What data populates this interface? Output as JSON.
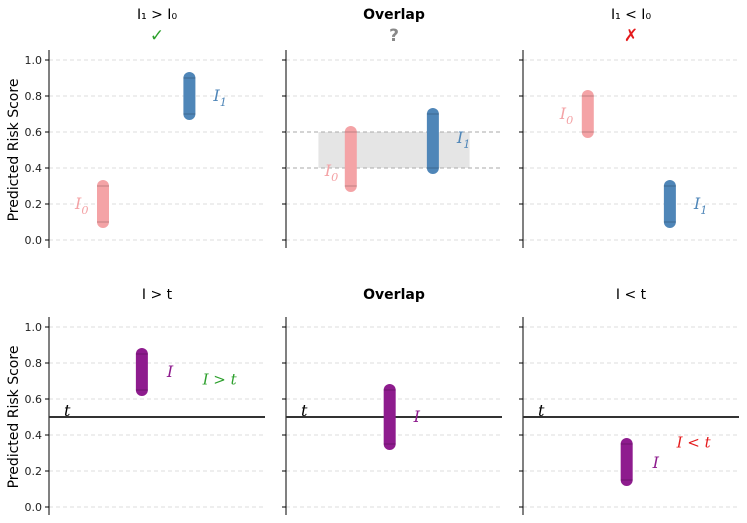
{
  "chart_data": {
    "type": "range-bars",
    "ylabel": "Predicted Risk Score",
    "ylim": [
      -0.05,
      1.05
    ],
    "yticks": [
      "0.0",
      "0.2",
      "0.4",
      "0.6",
      "0.8",
      "1.0"
    ],
    "ytick_values": [
      0.0,
      0.2,
      0.4,
      0.6,
      0.8,
      1.0
    ],
    "colors": {
      "i0": "#f4a3a6",
      "i1": "#4f86b8",
      "i": "#8e1c8e",
      "check": "#2ca02c",
      "cross": "#e41a1c",
      "question": "#888888",
      "overlap_fill": "#e5e5e5"
    },
    "panels": [
      {
        "id": "top-left",
        "title": "I₁ > I₀",
        "mark": "✓",
        "bars": [
          {
            "name": "I0",
            "label": "I₀",
            "low": 0.1,
            "high": 0.3,
            "x": 0.25,
            "color": "i0"
          },
          {
            "name": "I1",
            "label": "I₁",
            "low": 0.7,
            "high": 0.9,
            "x": 0.65,
            "color": "i1"
          }
        ]
      },
      {
        "id": "top-middle",
        "title": "Overlap",
        "mark": "?",
        "overlap": [
          0.4,
          0.6
        ],
        "bars": [
          {
            "name": "I0",
            "label": "I₀",
            "low": 0.3,
            "high": 0.6,
            "x": 0.3,
            "color": "i0"
          },
          {
            "name": "I1",
            "label": "I₁",
            "low": 0.4,
            "high": 0.7,
            "x": 0.68,
            "color": "i1"
          }
        ]
      },
      {
        "id": "top-right",
        "title": "I₁ < I₀",
        "mark": "✗",
        "bars": [
          {
            "name": "I0",
            "label": "I₀",
            "low": 0.6,
            "high": 0.8,
            "x": 0.3,
            "color": "i0"
          },
          {
            "name": "I1",
            "label": "I₁",
            "low": 0.1,
            "high": 0.3,
            "x": 0.68,
            "color": "i1"
          }
        ]
      },
      {
        "id": "bottom-left",
        "title": "I > t",
        "threshold": 0.5,
        "threshold_label": "t",
        "annotation": "I > t",
        "bars": [
          {
            "name": "I",
            "label": "I",
            "low": 0.65,
            "high": 0.85,
            "x": 0.43,
            "color": "i"
          }
        ]
      },
      {
        "id": "bottom-middle",
        "title": "Overlap",
        "threshold": 0.5,
        "threshold_label": "t",
        "bars": [
          {
            "name": "I",
            "label": "I",
            "low": 0.35,
            "high": 0.65,
            "x": 0.48,
            "color": "i"
          }
        ]
      },
      {
        "id": "bottom-right",
        "title": "I < t",
        "threshold": 0.5,
        "threshold_label": "t",
        "annotation": "I < t",
        "bars": [
          {
            "name": "I",
            "label": "I",
            "low": 0.15,
            "high": 0.35,
            "x": 0.48,
            "color": "i"
          }
        ]
      }
    ]
  }
}
